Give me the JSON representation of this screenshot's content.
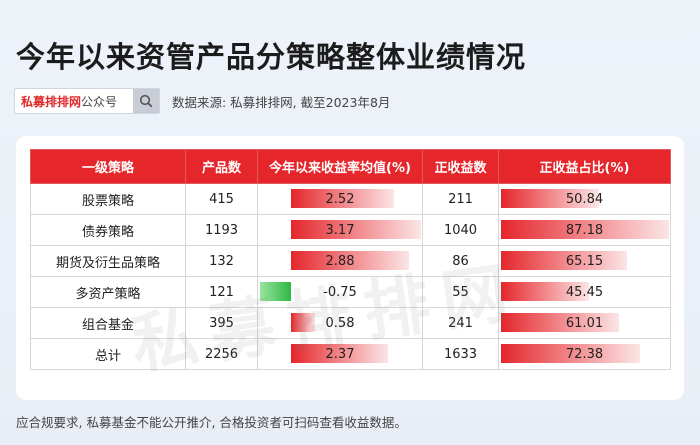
{
  "title": "今年以来资管产品分策略整体业绩情况",
  "search": {
    "brand": "私募排排网",
    "suffix": "公众号",
    "icon": "search-icon"
  },
  "source": "数据来源: 私募排排网, 截至2023年8月",
  "table": {
    "headers": [
      "一级策略",
      "产品数",
      "今年以来收益率均值(%)",
      "正收益数",
      "正收益占比(%)"
    ],
    "rows": [
      {
        "strategy": "股票策略",
        "count": "415",
        "avg_return": "2.52",
        "positive": "211",
        "ratio": "50.84"
      },
      {
        "strategy": "债券策略",
        "count": "1193",
        "avg_return": "3.17",
        "positive": "1040",
        "ratio": "87.18"
      },
      {
        "strategy": "期货及衍生品策略",
        "count": "132",
        "avg_return": "2.88",
        "positive": "86",
        "ratio": "65.15"
      },
      {
        "strategy": "多资产策略",
        "count": "121",
        "avg_return": "-0.75",
        "positive": "55",
        "ratio": "45.45"
      },
      {
        "strategy": "组合基金",
        "count": "395",
        "avg_return": "0.58",
        "positive": "241",
        "ratio": "61.01"
      },
      {
        "strategy": "总计",
        "count": "2256",
        "avg_return": "2.37",
        "positive": "1633",
        "ratio": "72.38"
      }
    ]
  },
  "watermark": "私募排排网",
  "footer": "应合规要求, 私募基金不能公开推介, 合格投资者可扫码查看收益数据。",
  "colors": {
    "accent": "#e5262a",
    "positive_bar": "#e4262b",
    "negative_bar": "#2db844"
  }
}
